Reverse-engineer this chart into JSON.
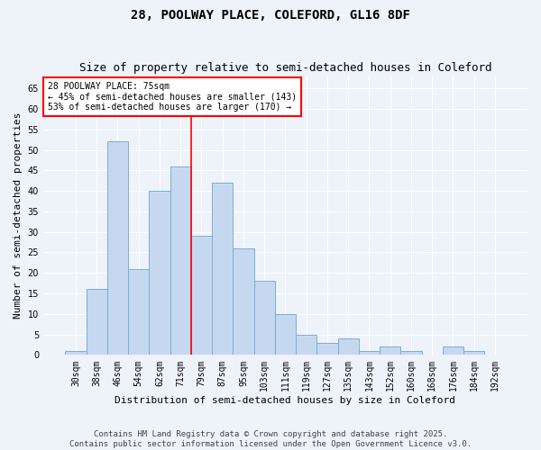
{
  "title1": "28, POOLWAY PLACE, COLEFORD, GL16 8DF",
  "title2": "Size of property relative to semi-detached houses in Coleford",
  "xlabel": "Distribution of semi-detached houses by size in Coleford",
  "ylabel": "Number of semi-detached properties",
  "categories": [
    "30sqm",
    "38sqm",
    "46sqm",
    "54sqm",
    "62sqm",
    "71sqm",
    "79sqm",
    "87sqm",
    "95sqm",
    "103sqm",
    "111sqm",
    "119sqm",
    "127sqm",
    "135sqm",
    "143sqm",
    "152sqm",
    "160sqm",
    "168sqm",
    "176sqm",
    "184sqm",
    "192sqm"
  ],
  "values": [
    1,
    16,
    52,
    21,
    40,
    46,
    29,
    42,
    26,
    18,
    10,
    5,
    3,
    4,
    1,
    2,
    1,
    0,
    2,
    1,
    0
  ],
  "bar_color": "#c5d8f0",
  "bar_edge_color": "#7aafd4",
  "vline_color": "red",
  "vline_pos": 5.5,
  "annotation_title": "28 POOLWAY PLACE: 75sqm",
  "annotation_line1": "← 45% of semi-detached houses are smaller (143)",
  "annotation_line2": "53% of semi-detached houses are larger (170) →",
  "annotation_box_color": "white",
  "annotation_box_edge": "red",
  "ylim": [
    0,
    68
  ],
  "yticks": [
    0,
    5,
    10,
    15,
    20,
    25,
    30,
    35,
    40,
    45,
    50,
    55,
    60,
    65
  ],
  "footer_line1": "Contains HM Land Registry data © Crown copyright and database right 2025.",
  "footer_line2": "Contains public sector information licensed under the Open Government Licence v3.0.",
  "bg_color": "#eef2f9",
  "grid_color": "white",
  "title1_fontsize": 10,
  "title2_fontsize": 9,
  "axis_label_fontsize": 8,
  "tick_fontsize": 7,
  "annotation_fontsize": 7,
  "footer_fontsize": 6.5
}
